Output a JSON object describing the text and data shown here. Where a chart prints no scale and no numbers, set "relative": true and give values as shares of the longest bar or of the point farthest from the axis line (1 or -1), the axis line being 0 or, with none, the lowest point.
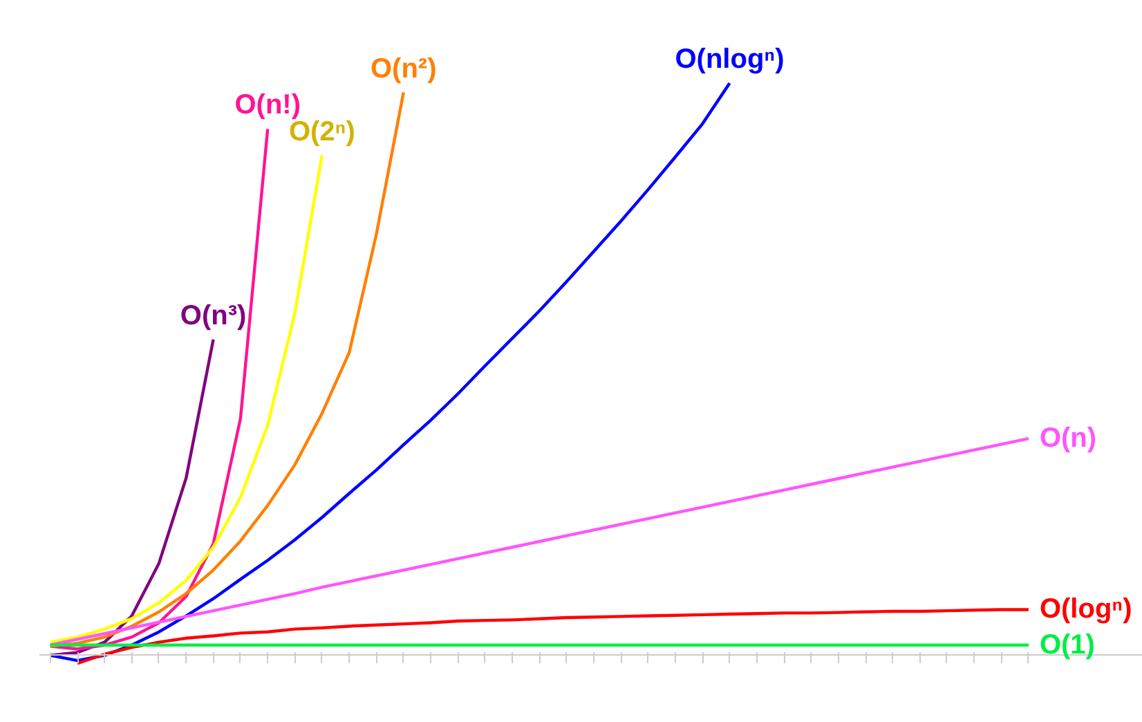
{
  "chart_data": {
    "type": "line",
    "relative": true,
    "categories": [
      null,
      null,
      null,
      null,
      null,
      null,
      null,
      null,
      null,
      null,
      null,
      null,
      null,
      null,
      null,
      null,
      null,
      null,
      null,
      null,
      null,
      null,
      null,
      null,
      null,
      null,
      null,
      null,
      null,
      null,
      null,
      null,
      null,
      null,
      null,
      null,
      null
    ],
    "series": [
      {
        "name": "O(n³)",
        "color": "#800080",
        "values": [
          0,
          0.005,
          0.023,
          0.069,
          0.161,
          0.31,
          0.552,
          null,
          null,
          null,
          null,
          null,
          null,
          null,
          null,
          null,
          null,
          null,
          null,
          null,
          null,
          null,
          null,
          null,
          null,
          null,
          null,
          null,
          null,
          null,
          null,
          null,
          null,
          null,
          null,
          null,
          null
        ]
      },
      {
        "name": "O(n!)",
        "color": "#ff1493",
        "values": [
          0.016,
          0.011,
          0.018,
          0.032,
          0.057,
          0.103,
          0.195,
          0.414,
          0.92,
          null,
          null,
          null,
          null,
          null,
          null,
          null,
          null,
          null,
          null,
          null,
          null,
          null,
          null,
          null,
          null,
          null,
          null,
          null,
          null,
          null,
          null,
          null,
          null,
          null,
          null,
          null,
          null
        ]
      },
      {
        "name": "O(2ⁿ)",
        "color": "#ffff00",
        "values": [
          0.023,
          0.032,
          0.046,
          0.064,
          0.092,
          0.131,
          0.189,
          0.276,
          0.402,
          0.598,
          0.874,
          null,
          null,
          null,
          null,
          null,
          null,
          null,
          null,
          null,
          null,
          null,
          null,
          null,
          null,
          null,
          null,
          null,
          null,
          null,
          null,
          null,
          null,
          null,
          null,
          null,
          null
        ]
      },
      {
        "name": "O(n²)",
        "color": "#ff8000",
        "values": [
          0.016,
          0.021,
          0.032,
          0.051,
          0.076,
          0.108,
          0.149,
          0.2,
          0.262,
          0.333,
          0.423,
          0.529,
          0.736,
          0.984,
          null,
          null,
          null,
          null,
          null,
          null,
          null,
          null,
          null,
          null,
          null,
          null,
          null,
          null,
          null,
          null,
          null,
          null,
          null,
          null,
          null,
          null,
          null
        ]
      },
      {
        "name": "O(nlogⁿ)",
        "color": "#0000ff",
        "values": [
          0,
          -0.009,
          0,
          0.018,
          0.041,
          0.069,
          0.099,
          0.133,
          0.166,
          0.202,
          0.241,
          0.283,
          0.324,
          0.368,
          0.411,
          0.457,
          0.506,
          0.554,
          0.602,
          0.653,
          0.706,
          0.759,
          0.814,
          0.871,
          0.929,
          1,
          null,
          null,
          null,
          null,
          null,
          null,
          null,
          null,
          null,
          null,
          null
        ]
      },
      {
        "name": "O(n)",
        "color": "#ff55ff",
        "values": [
          0.018,
          0.028,
          0.038,
          0.048,
          0.058,
          0.068,
          0.078,
          0.088,
          0.098,
          0.108,
          0.119,
          0.129,
          0.139,
          0.149,
          0.159,
          0.169,
          0.179,
          0.189,
          0.199,
          0.209,
          0.219,
          0.229,
          0.239,
          0.249,
          0.259,
          0.269,
          0.279,
          0.289,
          0.299,
          0.309,
          0.319,
          0.329,
          0.339,
          0.349,
          0.359,
          0.369,
          0.379
        ]
      },
      {
        "name": "O(logⁿ)",
        "color": "#ff0000",
        "values": [
          null,
          -0.014,
          0.002,
          0.014,
          0.023,
          0.03,
          0.034,
          0.039,
          0.041,
          0.046,
          0.048,
          0.051,
          0.053,
          0.055,
          0.057,
          0.06,
          0.061,
          0.062,
          0.064,
          0.066,
          0.067,
          0.068,
          0.069,
          0.07,
          0.071,
          0.072,
          0.073,
          0.074,
          0.074,
          0.075,
          0.076,
          0.077,
          0.077,
          0.078,
          0.079,
          0.08,
          0.08
        ]
      },
      {
        "name": "O(1)",
        "color": "#00ee44",
        "values": [
          0.018,
          0.018,
          0.018,
          0.018,
          0.018,
          0.018,
          0.018,
          0.018,
          0.018,
          0.018,
          0.018,
          0.018,
          0.018,
          0.018,
          0.018,
          0.018,
          0.018,
          0.018,
          0.018,
          0.018,
          0.018,
          0.018,
          0.018,
          0.018,
          0.018,
          0.018,
          0.018,
          0.018,
          0.018,
          0.018,
          0.018,
          0.018,
          0.018,
          0.018,
          0.018,
          0.018,
          0.018
        ]
      }
    ]
  }
}
